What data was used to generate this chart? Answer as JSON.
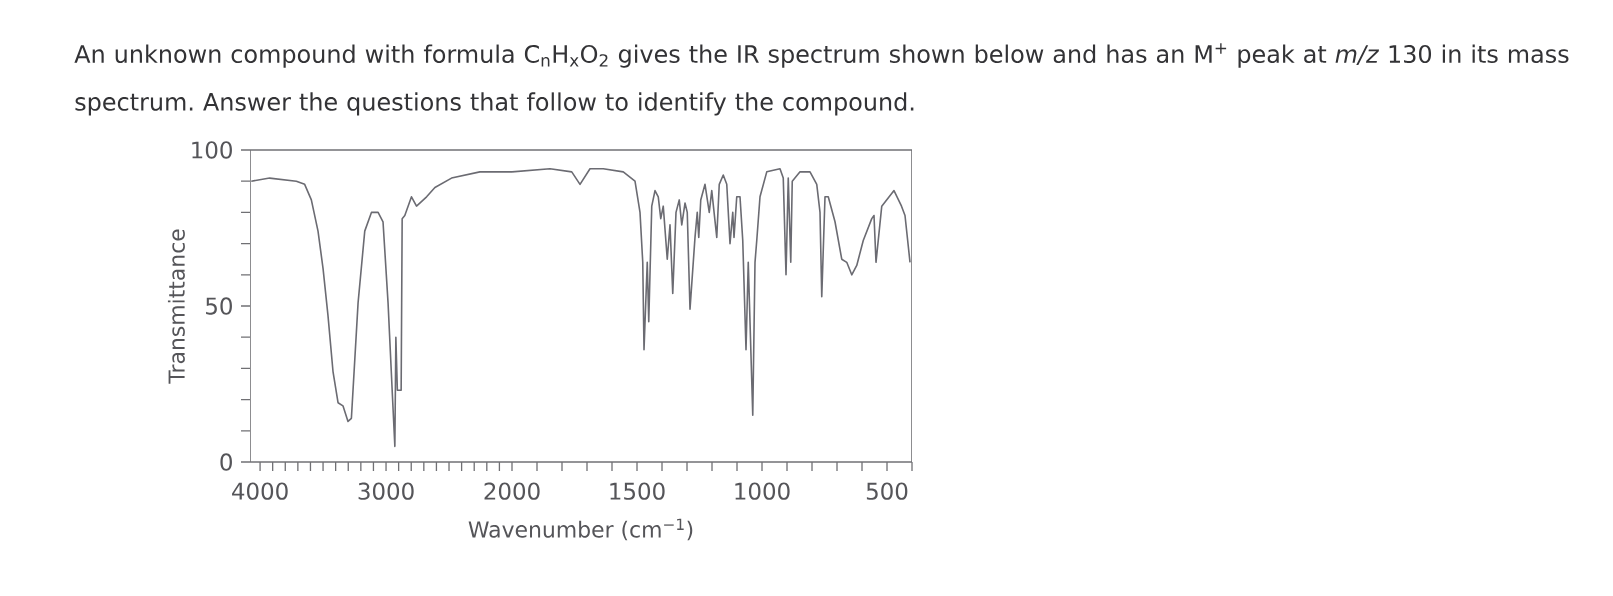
{
  "chart_data": [
    {
      "type": "line",
      "title": "An unknown compound with formula C$_{n}$H$_{x}$O$_{2}$ gives the IR spectrum shown below and has an M$^{+}$ peak at *m/z* 130 in its mass spectrum. Answer the questions that follow to identify the compound.",
      "ylabel": "Transmittance",
      "color": "#6b6b72",
      "x": [
        4070,
        3924,
        3712,
        3646,
        3593,
        3540,
        3500,
        3461,
        3421,
        3381,
        3342,
        3302,
        3275,
        3222,
        3169,
        3116,
        3063,
        3024,
        2984,
        2949,
        2930,
        2922,
        2910,
        2880,
        2872,
        2851,
        2798,
        2758,
        2678,
        2612,
        2480,
        2255,
        2096,
        2000
      ],
      "values": [
        90,
        91,
        90,
        89,
        84,
        74,
        62,
        47,
        29,
        19,
        18,
        13,
        14,
        51,
        74,
        80,
        80,
        77,
        51,
        21,
        5,
        40,
        23,
        23,
        78,
        79,
        85,
        82,
        85,
        88,
        91,
        93,
        93,
        93
      ],
      "xlim": [
        4080,
        2000
      ],
      "ylim": [
        0,
        100
      ],
      "xticks": [
        4000,
        {
          "value": 3900,
          "label": null
        },
        {
          "value": 3800,
          "label": null
        },
        {
          "value": 3700,
          "label": null
        },
        {
          "value": 3600,
          "label": null
        },
        {
          "value": 3500,
          "label": null
        },
        {
          "value": 3400,
          "label": null
        },
        {
          "value": 3300,
          "label": null
        },
        {
          "value": 3200,
          "label": null
        },
        {
          "value": 3100,
          "label": null
        },
        3000,
        {
          "value": 2900,
          "label": null
        },
        {
          "value": 2800,
          "label": null
        },
        {
          "value": 2700,
          "label": null
        },
        {
          "value": 2600,
          "label": null
        },
        {
          "value": 2500,
          "label": null
        },
        {
          "value": 2400,
          "label": null
        },
        {
          "value": 2300,
          "label": null
        },
        {
          "value": 2200,
          "label": null
        },
        {
          "value": 2100,
          "label": null
        }
      ],
      "yticks": [
        0,
        {
          "value": 10,
          "label": null
        },
        {
          "value": 20,
          "label": null
        },
        {
          "value": 30,
          "label": null
        },
        {
          "value": 40,
          "label": null
        },
        50,
        {
          "value": 60,
          "label": null
        },
        {
          "value": 70,
          "label": null
        },
        {
          "value": 80,
          "label": null
        },
        {
          "value": 90,
          "label": null
        },
        100
      ]
    },
    {
      "type": "line",
      "xlabel": "Wavenumber (cm$^{−1}$)",
      "color": "#6b6b72",
      "x": [
        2000,
        1848,
        1761,
        1728,
        1688,
        1635,
        1555,
        1508,
        1488,
        1477,
        1472,
        1459,
        1453,
        1441,
        1428,
        1415,
        1405,
        1395,
        1379,
        1368,
        1357,
        1344,
        1331,
        1321,
        1308,
        1299,
        1288,
        1268,
        1259,
        1253,
        1245,
        1228,
        1211,
        1201,
        1181,
        1171,
        1155,
        1141,
        1128,
        1117,
        1112,
        1101,
        1088,
        1077,
        1064,
        1055,
        1037,
        1028,
        1021,
        1008,
        981,
        928,
        915,
        904,
        895,
        885,
        879,
        848,
        808,
        781,
        768,
        761,
        748,
        735,
        708,
        681,
        661,
        641,
        621,
        595,
        561,
        552,
        544,
        521,
        472,
        442,
        428,
        408
      ],
      "values": [
        93,
        94,
        93,
        89,
        94,
        94,
        93,
        90,
        80,
        64,
        36,
        64,
        45,
        82,
        87,
        85,
        78,
        82,
        65,
        76,
        54,
        80,
        84,
        76,
        83,
        80,
        49,
        72,
        80,
        72,
        84,
        89,
        80,
        87,
        72,
        89,
        92,
        89,
        70,
        80,
        72,
        85,
        85,
        71,
        36,
        64,
        15,
        64,
        71,
        85,
        93,
        94,
        91,
        60,
        91,
        64,
        90,
        93,
        93,
        89,
        80,
        53,
        85,
        85,
        77,
        65,
        64,
        60,
        63,
        71,
        78,
        79,
        64,
        82,
        87,
        82,
        79,
        64
      ],
      "xlim": [
        2000,
        400
      ],
      "ylim": [
        0,
        100
      ],
      "tick_labels": "x",
      "xticks": [
        2000,
        {
          "value": 1900,
          "label": null
        },
        {
          "value": 1800,
          "label": null
        },
        {
          "value": 1700,
          "label": null
        },
        {
          "value": 1600,
          "label": null
        },
        1500,
        {
          "value": 1400,
          "label": null
        },
        {
          "value": 1300,
          "label": null
        },
        {
          "value": 1200,
          "label": null
        },
        {
          "value": 1100,
          "label": null
        },
        1000,
        {
          "value": 900,
          "label": null
        },
        {
          "value": 800,
          "label": null
        },
        {
          "value": 700,
          "label": null
        },
        {
          "value": 600,
          "label": null
        },
        500,
        {
          "value": 400,
          "label": null
        }
      ]
    }
  ]
}
